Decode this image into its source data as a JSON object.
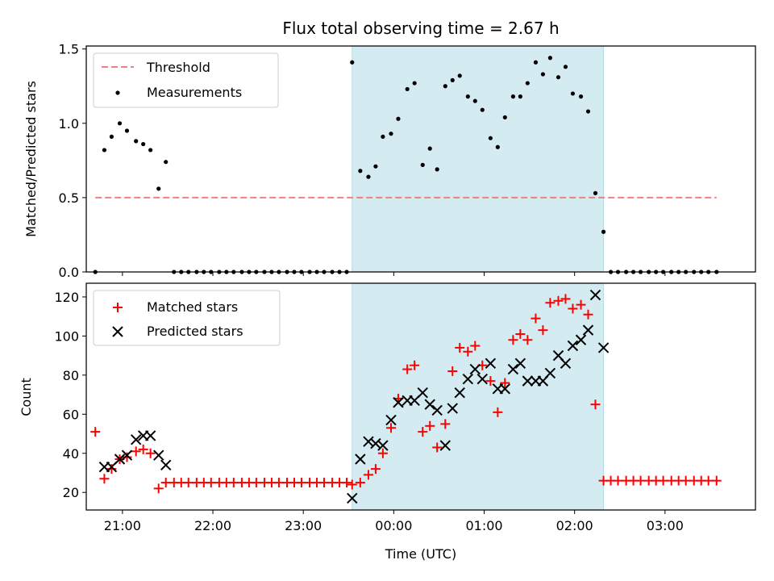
{
  "chart_data": {
    "type": "scatter",
    "title": "Flux total observing time = 2.67 h",
    "xlabel": "Time (UTC)",
    "x_unit": "hours after 20:00 UTC",
    "x_range": [
      20.6,
      28.0
    ],
    "x_ticks": [
      {
        "label": "21:00",
        "value": 21
      },
      {
        "label": "22:00",
        "value": 22
      },
      {
        "label": "23:00",
        "value": 23
      },
      {
        "label": "00:00",
        "value": 24
      },
      {
        "label": "01:00",
        "value": 25
      },
      {
        "label": "02:00",
        "value": 26
      },
      {
        "label": "03:00",
        "value": 27
      }
    ],
    "highlight_span": {
      "x_start": 23.54,
      "x_end": 26.32,
      "color": "#d3ebf1"
    },
    "panels": [
      {
        "name": "ratio",
        "ylabel": "Matched/Predicted stars",
        "ylim": [
          0,
          1.52
        ],
        "yticks": [
          {
            "label": "0.0",
            "value": 0
          },
          {
            "label": "0.5",
            "value": 0.5
          },
          {
            "label": "1.0",
            "value": 1.0
          },
          {
            "label": "1.5",
            "value": 1.5
          }
        ],
        "threshold": {
          "label": "Threshold",
          "value": 0.5,
          "x_start": 20.7,
          "x_end": 27.57,
          "color": "#f08080"
        },
        "series": [
          {
            "name": "Measurements",
            "color": "#000000",
            "marker": "dot",
            "points": [
              [
                20.7,
                0
              ],
              [
                20.8,
                0.82
              ],
              [
                20.88,
                0.91
              ],
              [
                20.97,
                1.0
              ],
              [
                21.05,
                0.95
              ],
              [
                21.15,
                0.88
              ],
              [
                21.23,
                0.86
              ],
              [
                21.31,
                0.82
              ],
              [
                21.4,
                0.56
              ],
              [
                21.48,
                0.74
              ],
              [
                21.57,
                0
              ],
              [
                21.65,
                0
              ],
              [
                21.73,
                0
              ],
              [
                21.82,
                0
              ],
              [
                21.9,
                0
              ],
              [
                21.98,
                0
              ],
              [
                22.07,
                0
              ],
              [
                22.15,
                0
              ],
              [
                22.23,
                0
              ],
              [
                22.32,
                0
              ],
              [
                22.4,
                0
              ],
              [
                22.48,
                0
              ],
              [
                22.57,
                0
              ],
              [
                22.65,
                0
              ],
              [
                22.73,
                0
              ],
              [
                22.82,
                0
              ],
              [
                22.9,
                0
              ],
              [
                22.98,
                0
              ],
              [
                23.07,
                0
              ],
              [
                23.15,
                0
              ],
              [
                23.23,
                0
              ],
              [
                23.32,
                0
              ],
              [
                23.4,
                0
              ],
              [
                23.48,
                0
              ],
              [
                23.54,
                1.41
              ],
              [
                23.63,
                0.68
              ],
              [
                23.72,
                0.64
              ],
              [
                23.8,
                0.71
              ],
              [
                23.88,
                0.91
              ],
              [
                23.97,
                0.93
              ],
              [
                24.05,
                1.03
              ],
              [
                24.15,
                1.23
              ],
              [
                24.23,
                1.27
              ],
              [
                24.32,
                0.72
              ],
              [
                24.4,
                0.83
              ],
              [
                24.48,
                0.69
              ],
              [
                24.57,
                1.25
              ],
              [
                24.65,
                1.29
              ],
              [
                24.73,
                1.32
              ],
              [
                24.82,
                1.18
              ],
              [
                24.9,
                1.15
              ],
              [
                24.98,
                1.09
              ],
              [
                25.07,
                0.9
              ],
              [
                25.15,
                0.84
              ],
              [
                25.23,
                1.04
              ],
              [
                25.32,
                1.18
              ],
              [
                25.4,
                1.18
              ],
              [
                25.48,
                1.27
              ],
              [
                25.57,
                1.41
              ],
              [
                25.65,
                1.33
              ],
              [
                25.73,
                1.44
              ],
              [
                25.82,
                1.31
              ],
              [
                25.9,
                1.38
              ],
              [
                25.98,
                1.2
              ],
              [
                26.07,
                1.18
              ],
              [
                26.15,
                1.08
              ],
              [
                26.23,
                0.53
              ],
              [
                26.32,
                0.27
              ],
              [
                26.4,
                0
              ],
              [
                26.48,
                0
              ],
              [
                26.57,
                0
              ],
              [
                26.65,
                0
              ],
              [
                26.73,
                0
              ],
              [
                26.82,
                0
              ],
              [
                26.9,
                0
              ],
              [
                26.98,
                0
              ],
              [
                27.07,
                0
              ],
              [
                27.15,
                0
              ],
              [
                27.23,
                0
              ],
              [
                27.32,
                0
              ],
              [
                27.4,
                0
              ],
              [
                27.48,
                0
              ],
              [
                27.57,
                0
              ]
            ]
          }
        ],
        "legend_position": "upper-left"
      },
      {
        "name": "count",
        "ylabel": "Count",
        "ylim": [
          11,
          127
        ],
        "yticks": [
          {
            "label": "20",
            "value": 20
          },
          {
            "label": "40",
            "value": 40
          },
          {
            "label": "60",
            "value": 60
          },
          {
            "label": "80",
            "value": 80
          },
          {
            "label": "100",
            "value": 100
          },
          {
            "label": "120",
            "value": 120
          }
        ],
        "series": [
          {
            "name": "Matched stars",
            "color": "#ff0000",
            "marker": "plus",
            "points": [
              [
                20.7,
                51
              ],
              [
                20.8,
                27
              ],
              [
                20.88,
                32
              ],
              [
                20.97,
                37
              ],
              [
                21.05,
                38
              ],
              [
                21.15,
                41
              ],
              [
                21.23,
                42
              ],
              [
                21.31,
                40
              ],
              [
                21.4,
                22
              ],
              [
                21.48,
                25
              ],
              [
                21.57,
                25
              ],
              [
                21.65,
                25
              ],
              [
                21.73,
                25
              ],
              [
                21.82,
                25
              ],
              [
                21.9,
                25
              ],
              [
                21.98,
                25
              ],
              [
                22.07,
                25
              ],
              [
                22.15,
                25
              ],
              [
                22.23,
                25
              ],
              [
                22.32,
                25
              ],
              [
                22.4,
                25
              ],
              [
                22.48,
                25
              ],
              [
                22.57,
                25
              ],
              [
                22.65,
                25
              ],
              [
                22.73,
                25
              ],
              [
                22.82,
                25
              ],
              [
                22.9,
                25
              ],
              [
                22.98,
                25
              ],
              [
                23.07,
                25
              ],
              [
                23.15,
                25
              ],
              [
                23.23,
                25
              ],
              [
                23.32,
                25
              ],
              [
                23.4,
                25
              ],
              [
                23.48,
                25
              ],
              [
                23.54,
                24
              ],
              [
                23.63,
                25
              ],
              [
                23.72,
                29
              ],
              [
                23.8,
                32
              ],
              [
                23.88,
                40
              ],
              [
                23.97,
                53
              ],
              [
                24.05,
                68
              ],
              [
                24.15,
                83
              ],
              [
                24.23,
                85
              ],
              [
                24.32,
                51
              ],
              [
                24.4,
                54
              ],
              [
                24.48,
                43
              ],
              [
                24.57,
                55
              ],
              [
                24.65,
                82
              ],
              [
                24.73,
                94
              ],
              [
                24.82,
                92
              ],
              [
                24.9,
                95
              ],
              [
                24.98,
                85
              ],
              [
                25.07,
                77
              ],
              [
                25.15,
                61
              ],
              [
                25.23,
                76
              ],
              [
                25.32,
                98
              ],
              [
                25.4,
                101
              ],
              [
                25.48,
                98
              ],
              [
                25.57,
                109
              ],
              [
                25.65,
                103
              ],
              [
                25.73,
                117
              ],
              [
                25.82,
                118
              ],
              [
                25.9,
                119
              ],
              [
                25.98,
                114
              ],
              [
                26.07,
                116
              ],
              [
                26.15,
                111
              ],
              [
                26.23,
                65
              ],
              [
                26.32,
                26
              ],
              [
                26.4,
                26
              ],
              [
                26.48,
                26
              ],
              [
                26.57,
                26
              ],
              [
                26.65,
                26
              ],
              [
                26.73,
                26
              ],
              [
                26.82,
                26
              ],
              [
                26.9,
                26
              ],
              [
                26.98,
                26
              ],
              [
                27.07,
                26
              ],
              [
                27.15,
                26
              ],
              [
                27.23,
                26
              ],
              [
                27.32,
                26
              ],
              [
                27.4,
                26
              ],
              [
                27.48,
                26
              ],
              [
                27.57,
                26
              ]
            ]
          },
          {
            "name": "Predicted stars",
            "color": "#000000",
            "marker": "x",
            "points": [
              [
                20.8,
                33
              ],
              [
                20.88,
                33
              ],
              [
                20.97,
                37
              ],
              [
                21.05,
                39
              ],
              [
                21.15,
                47
              ],
              [
                21.23,
                49
              ],
              [
                21.31,
                49
              ],
              [
                21.4,
                39
              ],
              [
                21.48,
                34
              ],
              [
                23.54,
                17
              ],
              [
                23.63,
                37
              ],
              [
                23.72,
                46
              ],
              [
                23.8,
                45
              ],
              [
                23.88,
                44
              ],
              [
                23.97,
                57
              ],
              [
                24.05,
                66
              ],
              [
                24.15,
                67
              ],
              [
                24.23,
                67
              ],
              [
                24.32,
                71
              ],
              [
                24.4,
                65
              ],
              [
                24.48,
                62
              ],
              [
                24.57,
                44
              ],
              [
                24.65,
                63
              ],
              [
                24.73,
                71
              ],
              [
                24.82,
                78
              ],
              [
                24.9,
                83
              ],
              [
                24.98,
                78
              ],
              [
                25.07,
                86
              ],
              [
                25.15,
                73
              ],
              [
                25.23,
                73
              ],
              [
                25.32,
                83
              ],
              [
                25.4,
                86
              ],
              [
                25.48,
                77
              ],
              [
                25.57,
                77
              ],
              [
                25.65,
                77
              ],
              [
                25.73,
                81
              ],
              [
                25.82,
                90
              ],
              [
                25.9,
                86
              ],
              [
                25.98,
                95
              ],
              [
                26.07,
                98
              ],
              [
                26.15,
                103
              ],
              [
                26.23,
                121
              ],
              [
                26.32,
                94
              ]
            ]
          }
        ],
        "legend_position": "upper-left"
      }
    ]
  }
}
